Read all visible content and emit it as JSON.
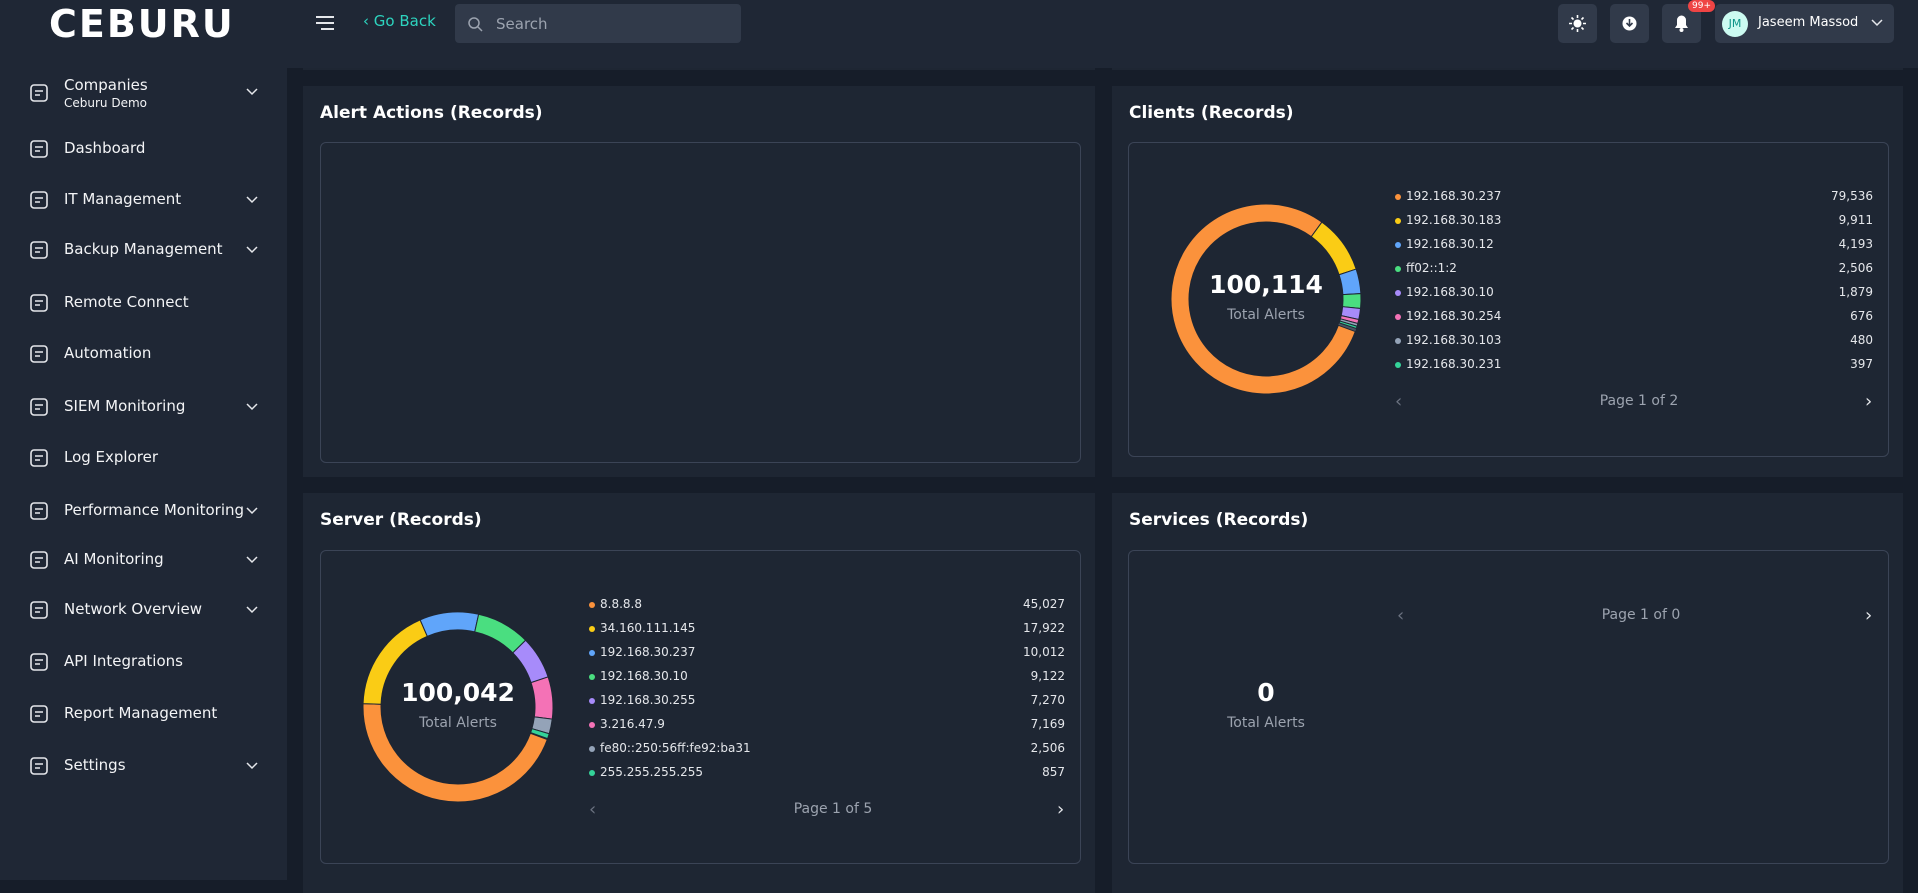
{
  "header": {
    "logo": "CEBURU",
    "go_back": "Go Back",
    "search_placeholder": "Search",
    "notification_badge": "99+",
    "user_initials": "JM",
    "user_name": "Jaseem Massod"
  },
  "sidebar": [
    {
      "label": "Companies",
      "sublabel": "Ceburu Demo",
      "expandable": true
    },
    {
      "label": "Dashboard",
      "expandable": false
    },
    {
      "label": "IT Management",
      "expandable": true
    },
    {
      "label": "Backup Management",
      "expandable": true
    },
    {
      "label": "Remote Connect",
      "expandable": false
    },
    {
      "label": "Automation",
      "expandable": false
    },
    {
      "label": "SIEM Monitoring",
      "expandable": true
    },
    {
      "label": "Log Explorer",
      "expandable": false
    },
    {
      "label": "Performance Monitoring",
      "expandable": true
    },
    {
      "label": "AI Monitoring",
      "expandable": true
    },
    {
      "label": "Network Overview",
      "expandable": true
    },
    {
      "label": "API Integrations",
      "expandable": false
    },
    {
      "label": "Report Management",
      "expandable": false
    },
    {
      "label": "Settings",
      "expandable": true
    }
  ],
  "panels": [
    {
      "title": "Alert Actions (Records)"
    },
    {
      "title": "Clients (Records)",
      "chart": {
        "type": "donut",
        "categories": [
          "192.168.30.237",
          "192.168.30.183",
          "192.168.30.12",
          "ff02::1:2",
          "192.168.30.10",
          "192.168.30.254",
          "192.168.30.103",
          "192.168.30.231"
        ],
        "values": [
          79536,
          9911,
          4193,
          2506,
          1879,
          676,
          480,
          397
        ],
        "value_labels": [
          "79,536",
          "9,911",
          "4,193",
          "2,506",
          "1,879",
          "676",
          "480",
          "397"
        ],
        "colors": [
          "#fb923c",
          "#facc15",
          "#60a5fa",
          "#4ade80",
          "#a78bfa",
          "#f472b6",
          "#94a3b8",
          "#34d399"
        ],
        "total": 100114,
        "total_label": "100,114",
        "caption": "Total Alerts",
        "pager": "Page 1 of 2"
      }
    },
    {
      "title": "Server (Records)",
      "chart": {
        "type": "donut",
        "categories": [
          "8.8.8.8",
          "34.160.111.145",
          "192.168.30.237",
          "192.168.30.10",
          "192.168.30.255",
          "3.216.47.9",
          "fe80::250:56ff:fe92:ba31",
          "255.255.255.255"
        ],
        "values": [
          45027,
          17922,
          10012,
          9122,
          7270,
          7169,
          2506,
          857
        ],
        "value_labels": [
          "45,027",
          "17,922",
          "10,012",
          "9,122",
          "7,270",
          "7,169",
          "2,506",
          "857"
        ],
        "colors": [
          "#fb923c",
          "#facc15",
          "#60a5fa",
          "#4ade80",
          "#a78bfa",
          "#f472b6",
          "#94a3b8",
          "#34d399"
        ],
        "total": 100042,
        "total_label": "100,042",
        "caption": "Total Alerts",
        "pager": "Page 1 of 5"
      }
    },
    {
      "title": "Services (Records)",
      "chart": {
        "type": "donut",
        "categories": [],
        "values": [],
        "value_labels": [],
        "colors": [],
        "total": 0,
        "total_label": "0",
        "caption": "Total Alerts",
        "pager": "Page 1 of 0"
      }
    }
  ]
}
